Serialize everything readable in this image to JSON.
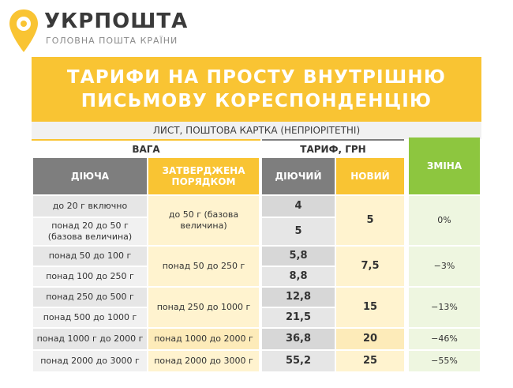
{
  "header": {
    "logo_name": "УКРПОШТА",
    "logo_subtitle": "ГОЛОВНА ПОШТА КРАЇНИ",
    "title": "ТАРИФИ НА ПРОСТУ ВНУТРІШНЮ\nПИСЬМОВУ КОРЕСПОНДЕНЦІЮ",
    "subtitle": "ЛИСТ, ПОШТОВА КАРТКА (НЕПРІОРІТЕТНІ)"
  },
  "table": {
    "group_weight": "ВАГА",
    "group_tariff": "ТАРИФ, ГРН",
    "col_current_weight": "ДІЮЧА",
    "col_approved_weight": "ЗАТВЕРДЖЕНА ПОРЯДКОМ",
    "col_current_tariff": "ДІЮЧИЙ",
    "col_new_tariff": "НОВИЙ",
    "col_change": "ЗМІНА",
    "rows": [
      {
        "current_weight": "до 20 г включно",
        "current_tariff": "4"
      },
      {
        "current_weight": "понад 20 до 50 г (базова величина)",
        "current_tariff": "5"
      },
      {
        "current_weight": "понад 50 до 100 г",
        "current_tariff": "5,8"
      },
      {
        "current_weight": "понад 100 до 250 г",
        "current_tariff": "8,8"
      },
      {
        "current_weight": "понад 250 до 500 г",
        "current_tariff": "12,8"
      },
      {
        "current_weight": "понад 500 до 1000 г",
        "current_tariff": "21,5"
      },
      {
        "current_weight": "понад 1000 г до 2000 г",
        "current_tariff": "36,8"
      },
      {
        "current_weight": "понад 2000 до 3000 г",
        "current_tariff": "55,2"
      }
    ],
    "groups": [
      {
        "approved_weight": "до 50 г (базова величина)",
        "new_tariff": "5",
        "change": "0%"
      },
      {
        "approved_weight": "понад 50 до 250 г",
        "new_tariff": "7,5",
        "change": "−3%"
      },
      {
        "approved_weight": "понад 250 до 1000 г",
        "new_tariff": "15",
        "change": "−13%"
      },
      {
        "approved_weight": "понад 1000 до 2000 г",
        "new_tariff": "20",
        "change": "−46%"
      },
      {
        "approved_weight": "понад 2000 до 3000 г",
        "new_tariff": "25",
        "change": "−55%"
      }
    ]
  },
  "colors": {
    "brand_yellow": "#f9c433",
    "header_gray": "#7e7e7e",
    "change_green": "#8dc63f"
  }
}
